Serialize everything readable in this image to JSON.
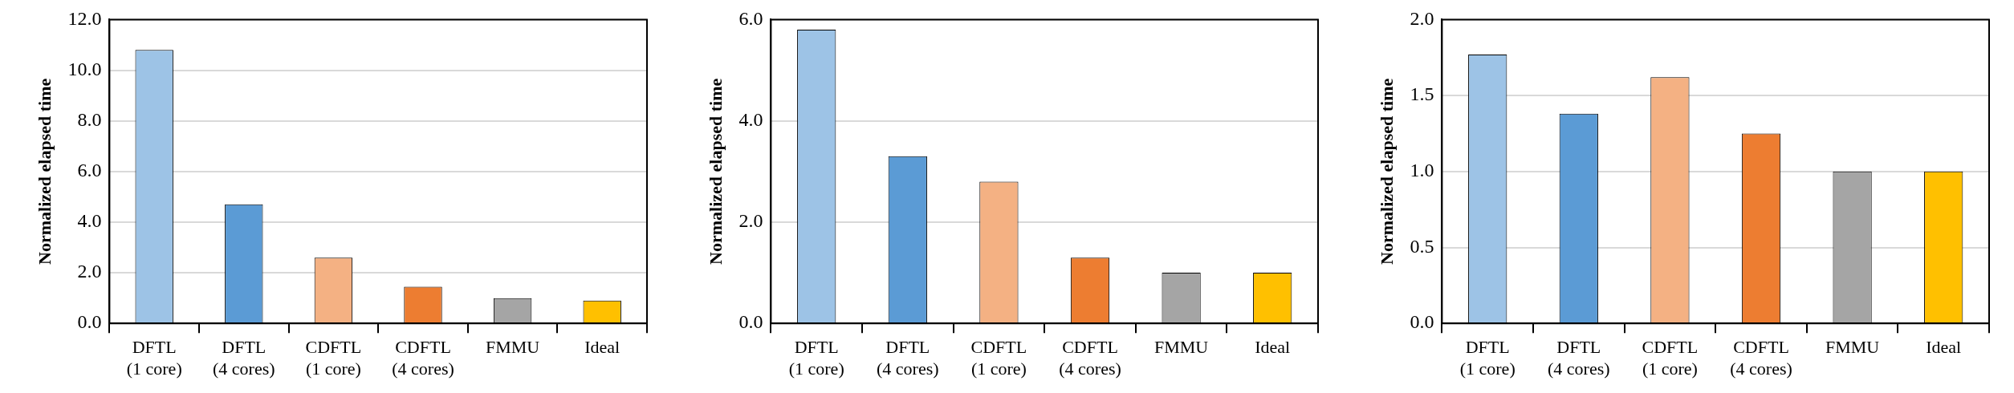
{
  "chart_data": [
    {
      "type": "bar",
      "ylabel": "Normalized elapsed time",
      "categories": [
        "DFTL\n(1 core)",
        "DFTL\n(4 cores)",
        "CDFTL\n(1 core)",
        "CDFTL\n(4 cores)",
        "FMMU",
        "Ideal"
      ],
      "values": [
        10.8,
        4.7,
        2.6,
        1.45,
        1.0,
        0.9
      ],
      "colors": [
        "#9dc3e6",
        "#5b9bd5",
        "#f4b183",
        "#ed7d31",
        "#a5a5a5",
        "#ffc000"
      ],
      "ylim": [
        0,
        12
      ],
      "yticks": [
        {
          "value": 0,
          "label": "0.0"
        },
        {
          "value": 2,
          "label": "2.0"
        },
        {
          "value": 4,
          "label": "4.0"
        },
        {
          "value": 6,
          "label": "6.0"
        },
        {
          "value": 8,
          "label": "8.0"
        },
        {
          "value": 10,
          "label": "10.0"
        },
        {
          "value": 12,
          "label": "12.0"
        }
      ],
      "grid": "y"
    },
    {
      "type": "bar",
      "ylabel": "Normalized elapsed time",
      "categories": [
        "DFTL\n(1 core)",
        "DFTL\n(4 cores)",
        "CDFTL\n(1 core)",
        "CDFTL\n(4 cores)",
        "FMMU",
        "Ideal"
      ],
      "values": [
        5.8,
        3.3,
        2.8,
        1.3,
        1.0,
        1.0
      ],
      "colors": [
        "#9dc3e6",
        "#5b9bd5",
        "#f4b183",
        "#ed7d31",
        "#a5a5a5",
        "#ffc000"
      ],
      "ylim": [
        0,
        6
      ],
      "yticks": [
        {
          "value": 0,
          "label": "0.0"
        },
        {
          "value": 2,
          "label": "2.0"
        },
        {
          "value": 4,
          "label": "4.0"
        },
        {
          "value": 6,
          "label": "6.0"
        }
      ],
      "grid": "y"
    },
    {
      "type": "bar",
      "ylabel": "Normalized elapsed time",
      "categories": [
        "DFTL\n(1 core)",
        "DFTL\n(4 cores)",
        "CDFTL\n(1 core)",
        "CDFTL\n(4 cores)",
        "FMMU",
        "Ideal"
      ],
      "values": [
        1.77,
        1.38,
        1.62,
        1.25,
        1.0,
        1.0
      ],
      "colors": [
        "#9dc3e6",
        "#5b9bd5",
        "#f4b183",
        "#ed7d31",
        "#a5a5a5",
        "#ffc000"
      ],
      "ylim": [
        0,
        2
      ],
      "yticks": [
        {
          "value": 0,
          "label": "0.0"
        },
        {
          "value": 0.5,
          "label": "0.5"
        },
        {
          "value": 1,
          "label": "1.0"
        },
        {
          "value": 1.5,
          "label": "1.5"
        },
        {
          "value": 2,
          "label": "2.0"
        }
      ],
      "grid": "y"
    }
  ]
}
